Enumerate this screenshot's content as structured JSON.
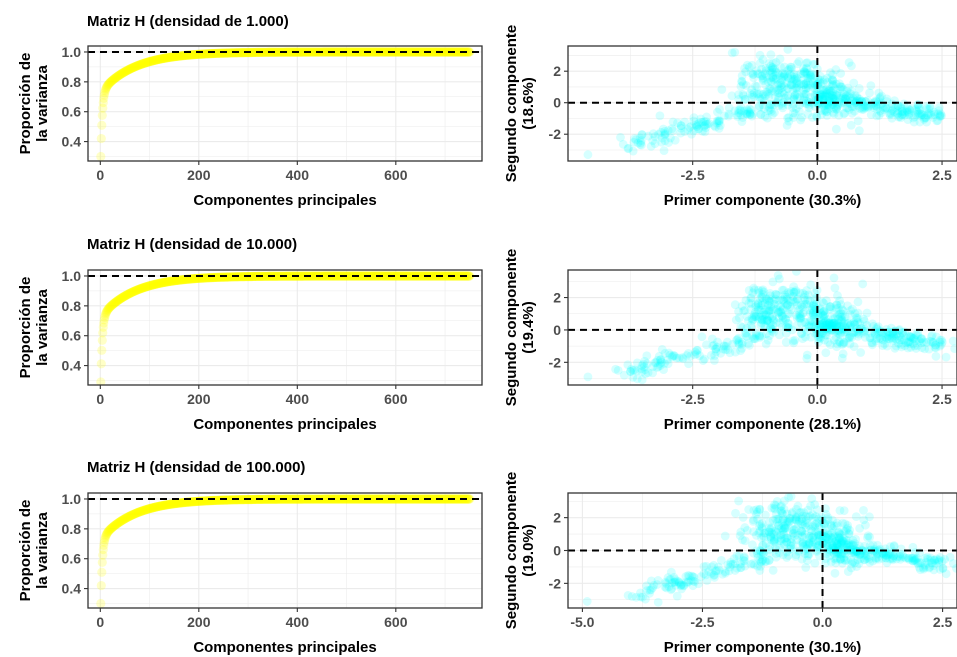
{
  "chart_data": [
    {
      "type": "scatter",
      "title": "Matriz H (densidad de 1.000)",
      "xlabel": "Componentes principales",
      "ylabel": [
        "Proporción de",
        "la varianza"
      ],
      "xlim": [
        -25,
        775
      ],
      "ylim": [
        0.27,
        1.04
      ],
      "xticks": [
        0,
        200,
        400,
        600
      ],
      "xtick_labels": [
        "0",
        "200",
        "400",
        "600"
      ],
      "yticks": [
        0.4,
        0.6,
        0.8,
        1.0
      ],
      "ytick_labels": [
        "0.4",
        "0.6",
        "0.8",
        "1.0"
      ],
      "reference_lines": [
        {
          "axis": "y",
          "value": 1.0,
          "style": "dashed"
        }
      ],
      "series": [
        {
          "color": "#ffff00",
          "n": 750,
          "x_start": 1,
          "y_start": 0.3,
          "y_end": 1.0
        }
      ],
      "grid": true
    },
    {
      "type": "scatter",
      "xlabel": "Primer componente (30.3%)",
      "ylabel": [
        "Segundo componente",
        "(18.6%)"
      ],
      "xlim": [
        -5.0,
        2.8
      ],
      "ylim": [
        -3.7,
        3.6
      ],
      "xticks": [
        -2.5,
        0.0,
        2.5
      ],
      "xtick_labels": [
        "-2.5",
        "0.0",
        "2.5"
      ],
      "yticks": [
        -2,
        0,
        2
      ],
      "ytick_labels": [
        "-2",
        "0",
        "2"
      ],
      "reference_lines": [
        {
          "axis": "x",
          "value": 0,
          "style": "dashed"
        },
        {
          "axis": "y",
          "value": 0,
          "style": "dashed"
        }
      ],
      "series": [
        {
          "color": "#00ffff",
          "n": 700,
          "seed": 11,
          "outlier": [
            -4.6,
            -3.3
          ]
        }
      ],
      "grid": true
    },
    {
      "type": "scatter",
      "title": "Matriz H (densidad de 10.000)",
      "xlabel": "Componentes principales",
      "ylabel": [
        "Proporción de",
        "la varianza"
      ],
      "xlim": [
        -25,
        775
      ],
      "ylim": [
        0.27,
        1.04
      ],
      "xticks": [
        0,
        200,
        400,
        600
      ],
      "xtick_labels": [
        "0",
        "200",
        "400",
        "600"
      ],
      "yticks": [
        0.4,
        0.6,
        0.8,
        1.0
      ],
      "ytick_labels": [
        "0.4",
        "0.6",
        "0.8",
        "1.0"
      ],
      "reference_lines": [
        {
          "axis": "y",
          "value": 1.0,
          "style": "dashed"
        }
      ],
      "series": [
        {
          "color": "#ffff00",
          "n": 750,
          "x_start": 1,
          "y_start": 0.29,
          "y_end": 1.0
        }
      ],
      "grid": true
    },
    {
      "type": "scatter",
      "xlabel": "Primer componente (28.1%)",
      "ylabel": [
        "Segundo componente",
        "(19.4%)"
      ],
      "xlim": [
        -5.0,
        2.8
      ],
      "ylim": [
        -3.4,
        3.7
      ],
      "xticks": [
        -2.5,
        0.0,
        2.5
      ],
      "xtick_labels": [
        "-2.5",
        "0.0",
        "2.5"
      ],
      "yticks": [
        -2,
        0,
        2
      ],
      "ytick_labels": [
        "-2",
        "0",
        "2"
      ],
      "reference_lines": [
        {
          "axis": "x",
          "value": 0,
          "style": "dashed"
        },
        {
          "axis": "y",
          "value": 0,
          "style": "dashed"
        }
      ],
      "series": [
        {
          "color": "#00ffff",
          "n": 700,
          "seed": 23,
          "outlier": [
            -4.6,
            -2.9
          ]
        }
      ],
      "grid": true
    },
    {
      "type": "scatter",
      "title": "Matriz H (densidad de 100.000)",
      "xlabel": "Componentes principales",
      "ylabel": [
        "Proporción de",
        "la varianza"
      ],
      "xlim": [
        -25,
        775
      ],
      "ylim": [
        0.27,
        1.04
      ],
      "xticks": [
        0,
        200,
        400,
        600
      ],
      "xtick_labels": [
        "0",
        "200",
        "400",
        "600"
      ],
      "yticks": [
        0.4,
        0.6,
        0.8,
        1.0
      ],
      "ytick_labels": [
        "0.4",
        "0.6",
        "0.8",
        "1.0"
      ],
      "reference_lines": [
        {
          "axis": "y",
          "value": 1.0,
          "style": "dashed"
        }
      ],
      "series": [
        {
          "color": "#ffff00",
          "n": 750,
          "x_start": 1,
          "y_start": 0.3,
          "y_end": 1.0
        }
      ],
      "grid": true
    },
    {
      "type": "scatter",
      "xlabel": "Primer componente (30.1%)",
      "ylabel": [
        "Segundo componente",
        "(19.0%)"
      ],
      "xlim": [
        -5.3,
        2.8
      ],
      "ylim": [
        -3.5,
        3.5
      ],
      "xticks": [
        -5.0,
        -2.5,
        0.0,
        2.5
      ],
      "xtick_labels": [
        "-5.0",
        "-2.5",
        "0.0",
        "2.5"
      ],
      "yticks": [
        -2,
        0,
        2
      ],
      "ytick_labels": [
        "-2",
        "0",
        "2"
      ],
      "reference_lines": [
        {
          "axis": "x",
          "value": 0,
          "style": "dashed"
        },
        {
          "axis": "y",
          "value": 0,
          "style": "dashed"
        }
      ],
      "series": [
        {
          "color": "#00ffff",
          "n": 700,
          "seed": 37,
          "outlier": [
            -4.9,
            -3.1
          ]
        }
      ],
      "grid": true
    }
  ]
}
